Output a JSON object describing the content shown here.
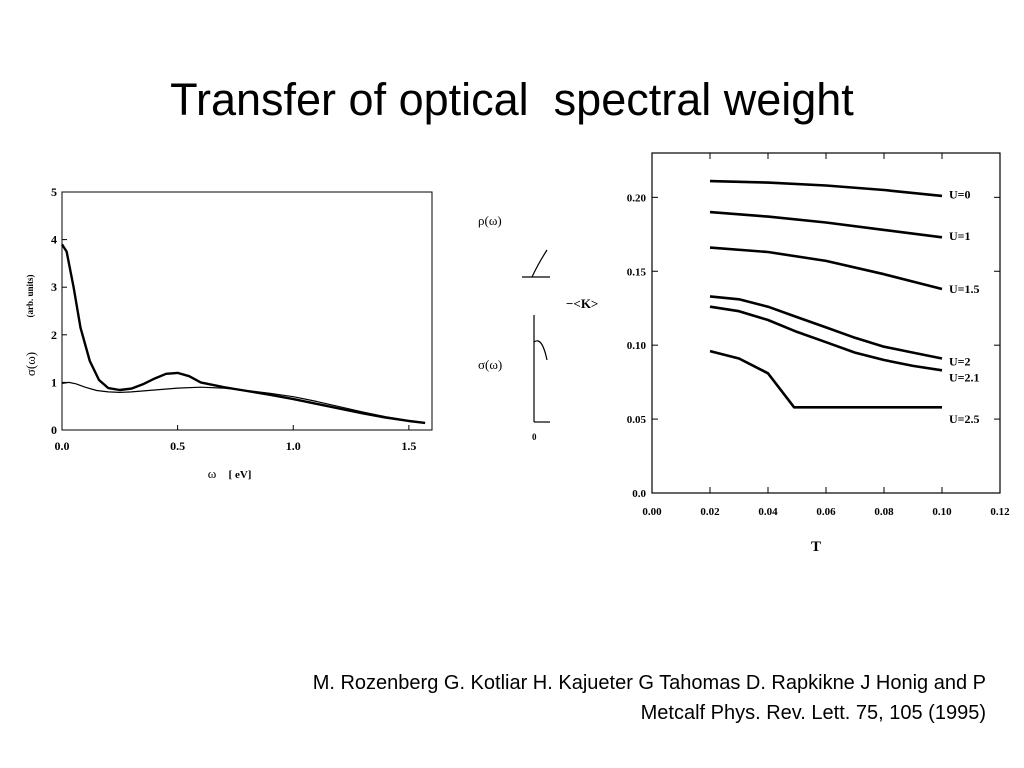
{
  "slide": {
    "title": "Transfer of optical  spectral weight",
    "citation_line1": "M. Rozenberg G. Kotliar H. Kajueter G Tahomas D. Rapkikne J Honig and P",
    "citation_line2": "Metcalf Phys. Rev. Lett. 75, 105 (1995)"
  },
  "chart_data": [
    {
      "type": "line",
      "ylabel_symbol": "σ(ω)",
      "ylabel_units": "(arb. units)",
      "xlabel_symbol": "ω",
      "xlabel_units": "[ eV]",
      "xlim": [
        0,
        1.6
      ],
      "ylim": [
        0,
        5
      ],
      "xticks": [
        0.0,
        0.5,
        1.0,
        1.5
      ],
      "xtick_labels": [
        "0.0",
        "0.5",
        "1.0",
        "1.5"
      ],
      "yticks": [
        0,
        1,
        2,
        3,
        4,
        5
      ],
      "ytick_labels": [
        "0",
        "1",
        "2",
        "3",
        "4",
        "5"
      ],
      "series": [
        {
          "style": "thick",
          "x": [
            0.0,
            0.02,
            0.05,
            0.08,
            0.12,
            0.16,
            0.2,
            0.25,
            0.3,
            0.35,
            0.4,
            0.45,
            0.5,
            0.55,
            0.6,
            0.7,
            0.8,
            0.9,
            1.0,
            1.1,
            1.2,
            1.3,
            1.4,
            1.5,
            1.57
          ],
          "y": [
            3.9,
            3.75,
            3.0,
            2.15,
            1.45,
            1.05,
            0.88,
            0.84,
            0.87,
            0.96,
            1.08,
            1.18,
            1.2,
            1.13,
            1.0,
            0.9,
            0.82,
            0.74,
            0.65,
            0.55,
            0.45,
            0.35,
            0.26,
            0.19,
            0.15
          ]
        },
        {
          "style": "thin",
          "x": [
            0.0,
            0.03,
            0.06,
            0.1,
            0.15,
            0.2,
            0.25,
            0.3,
            0.4,
            0.5,
            0.6,
            0.7,
            0.8,
            0.9,
            1.0,
            1.1,
            1.2,
            1.3,
            1.4,
            1.5,
            1.57
          ],
          "y": [
            0.98,
            1.0,
            0.97,
            0.9,
            0.83,
            0.8,
            0.79,
            0.8,
            0.84,
            0.88,
            0.9,
            0.88,
            0.83,
            0.77,
            0.7,
            0.6,
            0.49,
            0.38,
            0.28,
            0.2,
            0.15
          ]
        }
      ]
    },
    {
      "type": "line",
      "partial": true,
      "top_label": "ρ(ω)",
      "bottom_label": "σ(ω)",
      "tick_label": "0"
    },
    {
      "type": "line",
      "ylabel": "−<K>",
      "xlabel": "T",
      "xlim": [
        0.0,
        0.12
      ],
      "ylim": [
        0.0,
        0.23
      ],
      "xticks": [
        0.0,
        0.02,
        0.04,
        0.06,
        0.08,
        0.1,
        0.12
      ],
      "xtick_labels": [
        "0.00",
        "0.02",
        "0.04",
        "0.06",
        "0.08",
        "0.10",
        "0.12"
      ],
      "yticks": [
        0.0,
        0.05,
        0.1,
        0.15,
        0.2
      ],
      "ytick_labels": [
        "0.0",
        "0.05",
        "0.10",
        "0.15",
        "0.20"
      ],
      "series": [
        {
          "name": "U=0",
          "x": [
            0.02,
            0.04,
            0.06,
            0.08,
            0.1
          ],
          "y": [
            0.211,
            0.21,
            0.208,
            0.205,
            0.201
          ]
        },
        {
          "name": "U=1",
          "x": [
            0.02,
            0.04,
            0.06,
            0.08,
            0.1
          ],
          "y": [
            0.19,
            0.187,
            0.183,
            0.178,
            0.173
          ]
        },
        {
          "name": "U=1.5",
          "x": [
            0.02,
            0.04,
            0.06,
            0.08,
            0.1
          ],
          "y": [
            0.166,
            0.163,
            0.157,
            0.148,
            0.138
          ]
        },
        {
          "name": "U=2",
          "x": [
            0.02,
            0.03,
            0.04,
            0.05,
            0.06,
            0.07,
            0.08,
            0.09,
            0.1
          ],
          "y": [
            0.133,
            0.131,
            0.126,
            0.119,
            0.112,
            0.105,
            0.099,
            0.095,
            0.091
          ]
        },
        {
          "name": "U=2.1",
          "x": [
            0.02,
            0.03,
            0.04,
            0.05,
            0.06,
            0.07,
            0.08,
            0.09,
            0.1
          ],
          "y": [
            0.126,
            0.123,
            0.117,
            0.109,
            0.102,
            0.095,
            0.09,
            0.086,
            0.083
          ]
        },
        {
          "name": "U=2.5",
          "x": [
            0.02,
            0.03,
            0.04,
            0.049,
            0.06,
            0.08,
            0.1
          ],
          "y": [
            0.096,
            0.091,
            0.081,
            0.058,
            0.058,
            0.058,
            0.058
          ]
        }
      ]
    }
  ]
}
